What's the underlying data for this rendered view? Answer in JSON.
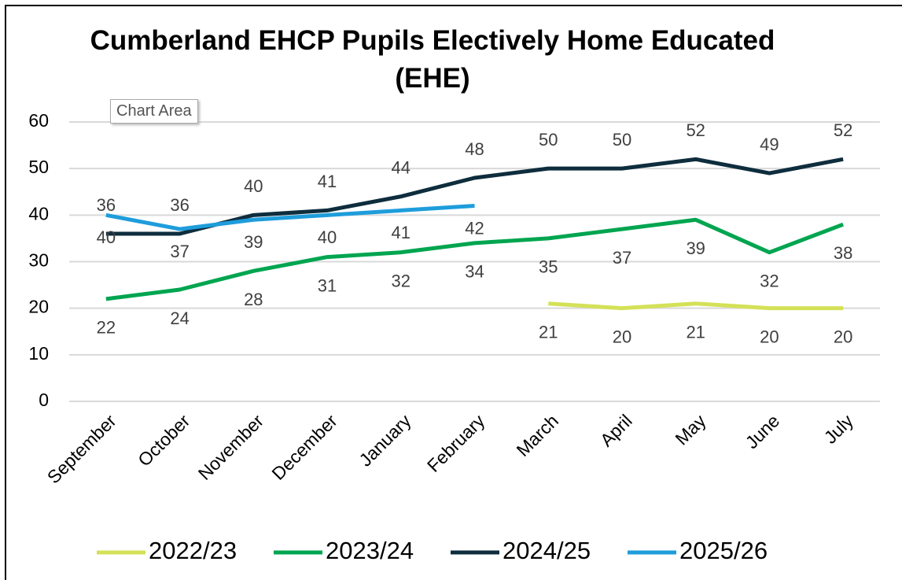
{
  "tooltip": "Chart Area",
  "chart_data": {
    "type": "line",
    "title": "Cumberland EHCP Pupils Electively Home Educated (EHE)",
    "categories": [
      "September",
      "October",
      "November",
      "December",
      "January",
      "February",
      "March",
      "April",
      "May",
      "June",
      "July"
    ],
    "series": [
      {
        "name": "2022/23",
        "color": "#d4e157",
        "values": [
          null,
          null,
          null,
          null,
          null,
          null,
          21,
          20,
          21,
          20,
          20
        ]
      },
      {
        "name": "2023/24",
        "color": "#00a550",
        "values": [
          22,
          24,
          28,
          31,
          32,
          34,
          35,
          37,
          39,
          32,
          38
        ]
      },
      {
        "name": "2024/25",
        "color": "#0e2d3d",
        "values": [
          36,
          36,
          40,
          41,
          44,
          48,
          50,
          50,
          52,
          49,
          52
        ]
      },
      {
        "name": "2025/26",
        "color": "#1e9ddb",
        "values": [
          40,
          37,
          39,
          40,
          41,
          42,
          null,
          null,
          null,
          null,
          null
        ]
      }
    ],
    "ylim": [
      0,
      60
    ],
    "yticks": [
      0,
      10,
      20,
      30,
      40,
      50,
      60
    ],
    "grid": true,
    "legend": "bottom"
  }
}
